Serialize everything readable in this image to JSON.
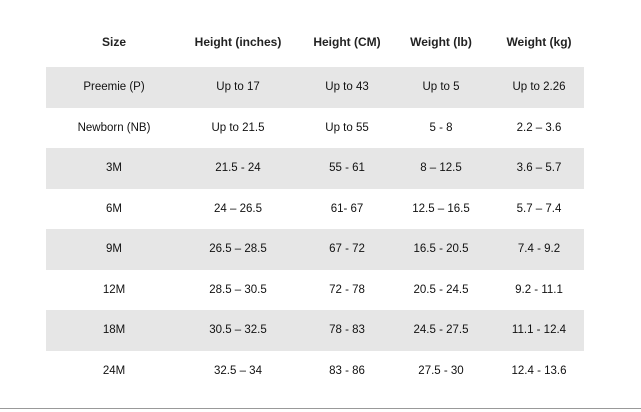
{
  "table": {
    "header": [
      "Size",
      "Height (inches)",
      "Height (CM)",
      "Weight (lb)",
      "Weight (kg)"
    ],
    "rows": [
      [
        "Preemie (P)",
        "Up to 17",
        "Up to 43",
        "Up to 5",
        "Up to 2.26"
      ],
      [
        "Newborn (NB)",
        "Up to 21.5",
        "Up to 55",
        "5 - 8",
        "2.2 – 3.6"
      ],
      [
        "3M",
        "21.5 - 24",
        "55 - 61",
        "8 – 12.5",
        "3.6 – 5.7"
      ],
      [
        "6M",
        "24 – 26.5",
        "61- 67",
        "12.5 – 16.5",
        "5.7 – 7.4"
      ],
      [
        "9M",
        "26.5 – 28.5",
        "67 - 72",
        "16.5 - 20.5",
        "7.4 - 9.2"
      ],
      [
        "12M",
        "28.5 – 30.5",
        "72 - 78",
        "20.5 - 24.5",
        "9.2 - 11.1"
      ],
      [
        "18M",
        "30.5 – 32.5",
        "78 - 83",
        "24.5 - 27.5",
        "11.1 - 12.4"
      ],
      [
        "24M",
        "32.5 – 34",
        "83 - 86",
        "27.5 - 30",
        "12.4 - 13.6"
      ]
    ]
  }
}
